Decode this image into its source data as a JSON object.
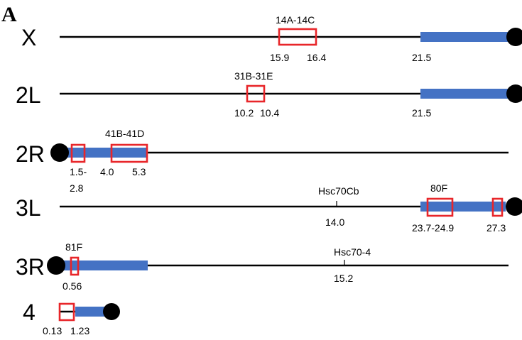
{
  "figure": {
    "panel_label": "A",
    "chromosomes": [
      {
        "name": "X",
        "labels_above": [
          "14A-14C"
        ],
        "labels_below": [
          "15.9",
          "16.4",
          "21.5"
        ]
      },
      {
        "name": "2L",
        "labels_above": [
          "31B-31E"
        ],
        "labels_below": [
          "10.2",
          "10.4",
          "21.5"
        ]
      },
      {
        "name": "2R",
        "labels_above": [
          "41B-41D"
        ],
        "labels_below": [
          "1.5-",
          "2.8",
          "4.0",
          "5.3"
        ]
      },
      {
        "name": "3L",
        "labels_above": [
          "Hsc70Cb",
          "80F"
        ],
        "labels_below": [
          "14.0",
          "23.7-24.9",
          "27.3"
        ]
      },
      {
        "name": "3R",
        "labels_above": [
          "81F",
          "Hsc70-4"
        ],
        "labels_below": [
          "0.56",
          "15.2"
        ]
      },
      {
        "name": "4",
        "labels_above": [],
        "labels_below": [
          "0.13",
          "1.23"
        ]
      }
    ],
    "colors": {
      "heterochromatin": "#4472C4",
      "region_box": "#E8262A",
      "line": "#000000"
    }
  }
}
